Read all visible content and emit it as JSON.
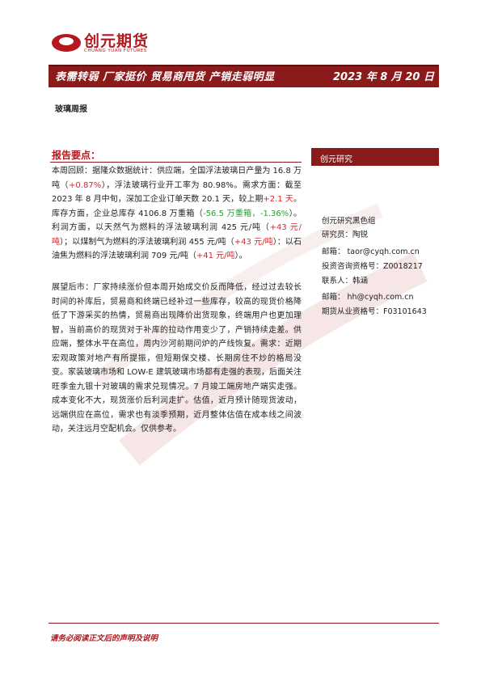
{
  "header": {
    "logo": "创元期货",
    "logo_en": "CHUANG YUAN FUTURES",
    "title": "表需转弱 厂家挺价 贸易商甩货 产销走弱明显",
    "date": "2023 年 8 月 20 日",
    "report_type": "玻璃周报"
  },
  "summary": {
    "heading": "报告要点：",
    "paragraphs": [
      [
        {
          "text": "本周回顾：据隆众数据统计：供应端，全国浮法玻璃日产量为 16.8 万吨（"
        },
        {
          "text": "+0.87%",
          "color": "#d9262c"
        },
        {
          "text": "），浮法玻璃行业开工率为 80.98%。需求方面：截至 2023 年 8 月中旬，深加工企业订单天数 20.1 天，较上期"
        },
        {
          "text": "+2.1 天",
          "color": "#d9262c"
        },
        {
          "text": "。库存方面，企业总库存 4106.8 万重箱（"
        },
        {
          "text": "-56.5 万重箱，-1.36%",
          "color": "#2e9a3a"
        },
        {
          "text": "）。利润方面，以天然气为燃料的浮法玻璃利润 425 元/吨（"
        },
        {
          "text": "+43 元/吨",
          "color": "#d9262c"
        },
        {
          "text": "）；以煤制气为燃料的浮法玻璃利润 455 元/吨（"
        },
        {
          "text": "+43 元/吨",
          "color": "#d9262c"
        },
        {
          "text": "）：以石油焦为燃料的浮法玻璃利润 709 元/吨（"
        },
        {
          "text": "+41 元/吨",
          "color": "#d9262c"
        },
        {
          "text": "）。"
        }
      ],
      [
        {
          "text": "展望后市：厂家持续涨价但本周开始成交价反而降低，经过过去较长时间的补库后，贸易商和终端已经补过一些库存，较高的现货价格降低了下游采买的热情，贸易商出现降价出货现象，终端用户也更加理智，当前高价的现货对于补库的拉动作用变少了，产销持续走差。供应端，整体水平在高位，周内沙河前期问炉的产线恢复。需求：近期宏观政策对地产有所提振，但短期保交楼、长期房住不炒的格局没变。家装玻璃市场和 LOW-E 建筑玻璃市场都有走强的表现，后面关注旺季金九银十对玻璃的需求兑现情况。7 月竣工端房地产端实走强。成本变化不大，现货涨价后利润走扩。估值，近月预计随现货波动，远端供应在高位，需求也有淡季预期，近月整体估值在成本线之间波动，关注远月空配机会。仅供参考。"
        }
      ]
    ]
  },
  "sidebar": {
    "title": "创元研究",
    "lines": [
      "创元研究黑色组",
      "研究员：陶锐",
      "邮箱： taor@cyqh.com.cn",
      "投资咨询资格号：Z0018217",
      "联系人：韩涵",
      "邮箱： hh@cyqh.com.cn",
      "期货从业资格号：F03101643"
    ]
  },
  "footer": "请务必阅读正文后的声明及说明"
}
